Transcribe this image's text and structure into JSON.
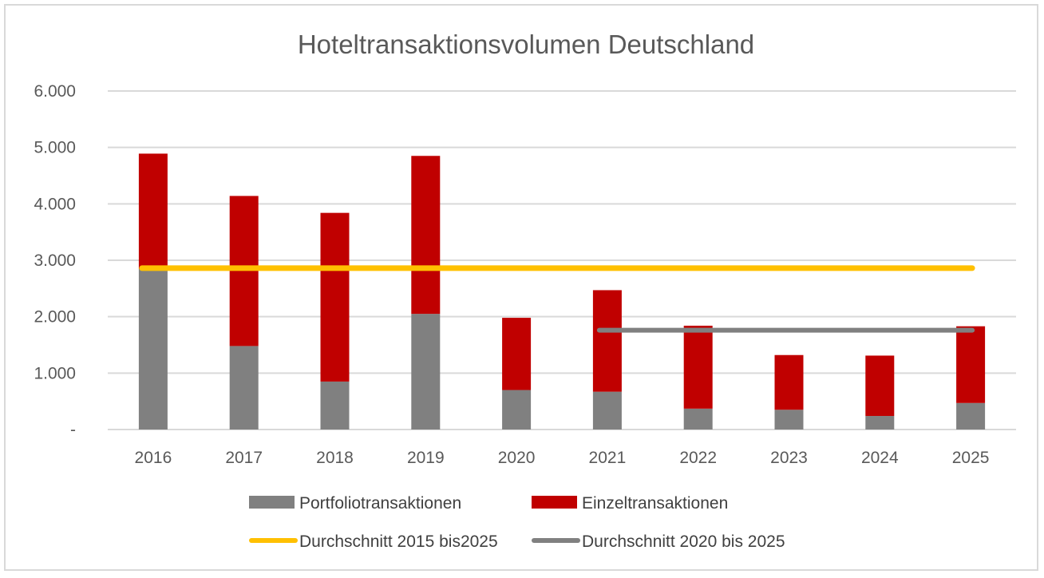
{
  "chart_data": {
    "type": "bar",
    "title": "Hoteltransaktionsvolumen Deutschland",
    "xlabel": "",
    "ylabel": "",
    "ylim": [
      0,
      6000
    ],
    "y_ticks": [
      {
        "value": 0,
        "label": "-"
      },
      {
        "value": 1000,
        "label": "1.000"
      },
      {
        "value": 2000,
        "label": "2.000"
      },
      {
        "value": 3000,
        "label": "3.000"
      },
      {
        "value": 4000,
        "label": "4.000"
      },
      {
        "value": 5000,
        "label": "5.000"
      },
      {
        "value": 6000,
        "label": "6.000"
      }
    ],
    "categories": [
      "2016",
      "2017",
      "2018",
      "2019",
      "2020",
      "2021",
      "2022",
      "2023",
      "2024",
      "2025"
    ],
    "stacked": true,
    "series": [
      {
        "name": "Portfoliotransaktionen",
        "color": "#808080",
        "values": [
          2850,
          1480,
          850,
          2050,
          700,
          670,
          370,
          350,
          240,
          470
        ]
      },
      {
        "name": "Einzeltransaktionen",
        "color": "#c00000",
        "values": [
          2040,
          2660,
          2990,
          2800,
          1280,
          1800,
          1470,
          970,
          1070,
          1360
        ]
      }
    ],
    "reference_lines": [
      {
        "name": "Durchschnitt 2015 bis2025",
        "color": "#ffc000",
        "value": 2860,
        "from": "2016",
        "to": "2025"
      },
      {
        "name": "Durchschnitt 2020 bis 2025",
        "color": "#808080",
        "value": 1760,
        "from": "2021",
        "to": "2025"
      }
    ],
    "grid": true,
    "legend_position": "bottom"
  }
}
